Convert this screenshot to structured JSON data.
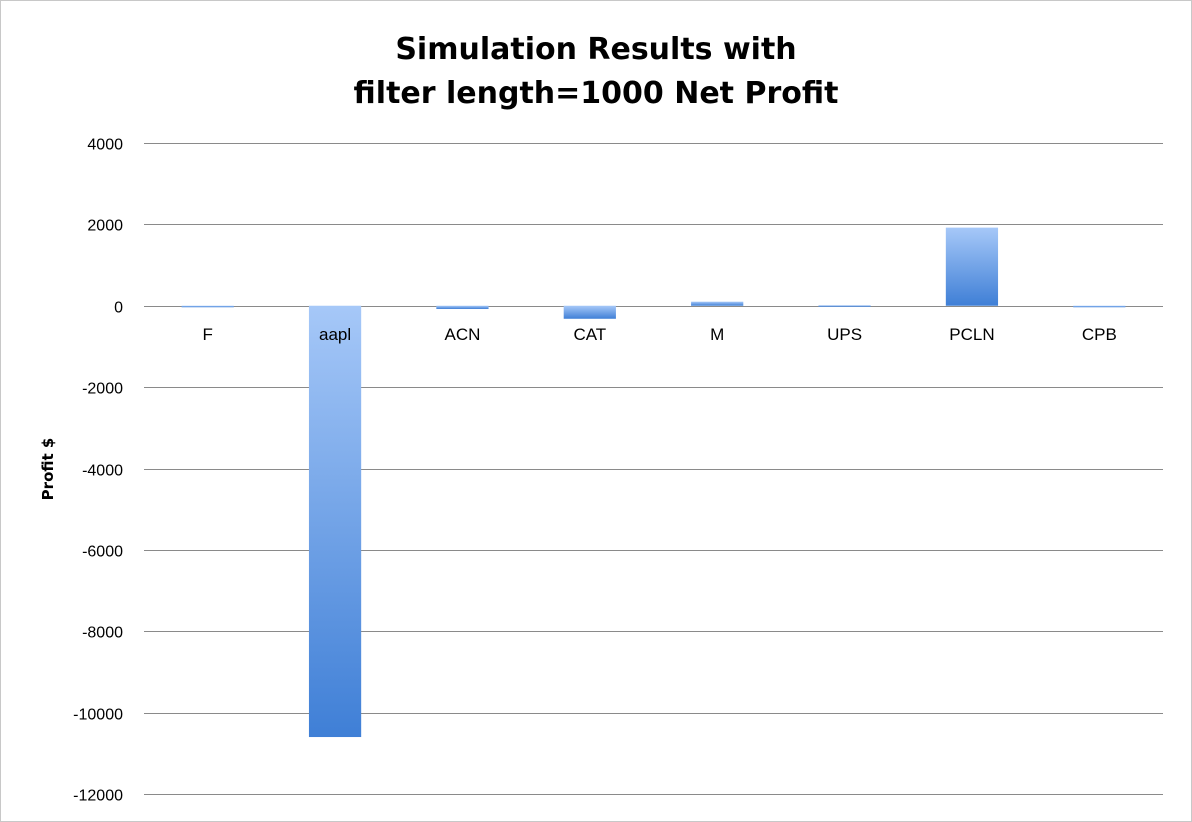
{
  "chart_data": {
    "type": "bar",
    "title": "Simulation Results with filter length=1000 Net Profit",
    "title_lines": [
      "Simulation Results with",
      "filter length=1000 Net Profit"
    ],
    "ylabel": "Profit $",
    "xlabel": "",
    "categories": [
      "F",
      "aapl",
      "ACN",
      "CAT",
      "M",
      "UPS",
      "PCLN",
      "CPB"
    ],
    "values": [
      -20,
      -10600,
      -80,
      -320,
      100,
      10,
      1920,
      -30
    ],
    "ylim": [
      -12000,
      4000
    ],
    "yticks": [
      4000,
      2000,
      0,
      -2000,
      -4000,
      -6000,
      -8000,
      -10000,
      -12000
    ],
    "grid": true,
    "bar_color_light": "#a6c8f8",
    "bar_color_dark": "#3f7fd6"
  }
}
